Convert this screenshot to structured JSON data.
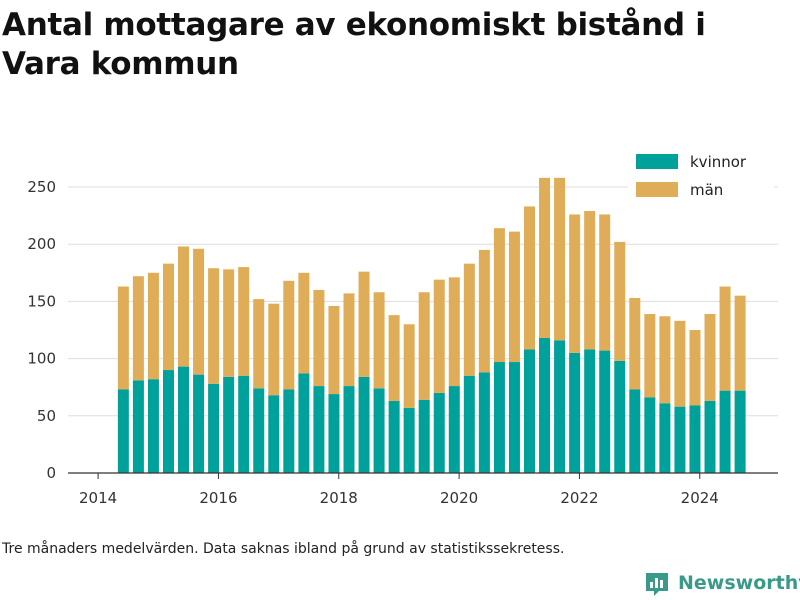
{
  "title": "Antal mottagare av ekonomiskt bistånd i Vara kommun",
  "footnote": "Tre månaders medelvärden. Data saknas ibland på grund av statistikssekretess.",
  "brand": {
    "name": "Newsworthy",
    "color": "#3a9a8a"
  },
  "colors": {
    "kvinnor": "#00a19a",
    "man": "#dfad57",
    "grid": "#dddddd",
    "axis": "#333333"
  },
  "chart_data": {
    "type": "bar",
    "stacked": true,
    "x": [
      2014.42,
      2014.67,
      2014.92,
      2015.17,
      2015.42,
      2015.67,
      2015.92,
      2016.17,
      2016.42,
      2016.67,
      2016.92,
      2017.17,
      2017.42,
      2017.67,
      2017.92,
      2018.17,
      2018.42,
      2018.67,
      2018.92,
      2019.17,
      2019.42,
      2019.67,
      2019.92,
      2020.17,
      2020.42,
      2020.67,
      2020.92,
      2021.17,
      2021.42,
      2021.67,
      2021.92,
      2022.17,
      2022.42,
      2022.67,
      2022.92,
      2023.17,
      2023.42,
      2023.67,
      2023.92,
      2024.17,
      2024.42,
      2024.67
    ],
    "series": [
      {
        "name": "kvinnor",
        "color": "#00a19a",
        "values": [
          73,
          81,
          82,
          90,
          93,
          86,
          78,
          84,
          85,
          74,
          68,
          73,
          87,
          76,
          69,
          76,
          84,
          74,
          63,
          57,
          64,
          70,
          76,
          85,
          88,
          97,
          97,
          108,
          118,
          116,
          105,
          108,
          107,
          98,
          73,
          66,
          61,
          58,
          59,
          63,
          72,
          72
        ]
      },
      {
        "name": "män",
        "color": "#dfad57",
        "values": [
          90,
          91,
          93,
          93,
          105,
          110,
          101,
          94,
          95,
          78,
          80,
          95,
          88,
          84,
          77,
          81,
          92,
          84,
          75,
          73,
          94,
          99,
          95,
          98,
          107,
          117,
          114,
          125,
          140,
          142,
          121,
          121,
          119,
          104,
          80,
          73,
          76,
          75,
          66,
          76,
          91,
          83
        ]
      }
    ],
    "xlim": [
      2013.5,
      2025.3
    ],
    "ylim": [
      0,
      250
    ],
    "x_ticks": [
      "2014",
      "2016",
      "2018",
      "2020",
      "2022",
      "2024"
    ],
    "y_ticks": [
      "0",
      "50",
      "100",
      "150",
      "200",
      "250"
    ],
    "legend": {
      "placement": "top-right",
      "entries": [
        "kvinnor",
        "män"
      ]
    },
    "grid": true
  }
}
